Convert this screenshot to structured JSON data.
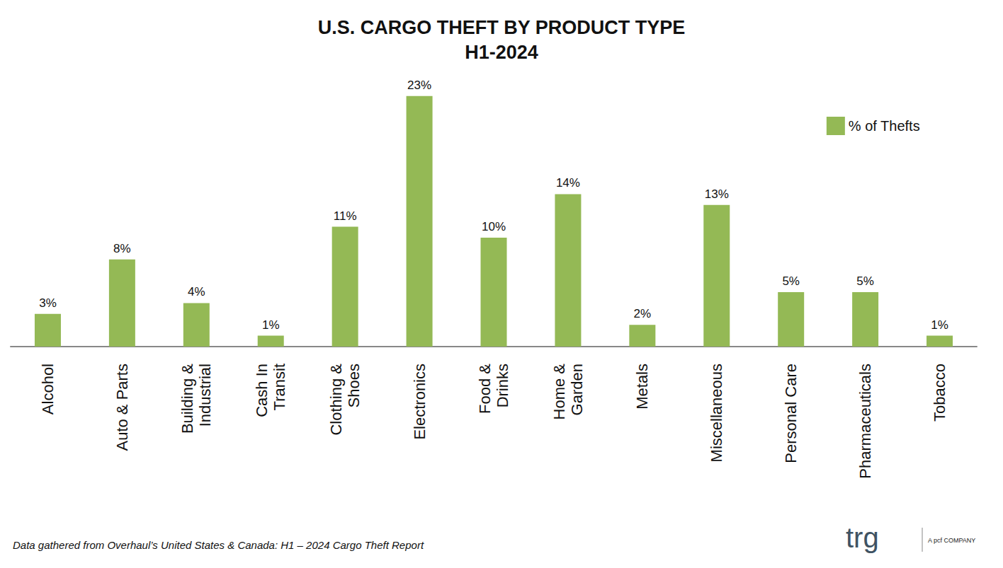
{
  "chart_data": {
    "type": "bar",
    "title": "U.S. CARGO THEFT BY PRODUCT TYPE",
    "subtitle": "H1-2024",
    "categories": [
      "Alcohol",
      "Auto & Parts",
      "Building &\nIndustrial",
      "Cash In\nTransit",
      "Clothing &\nShoes",
      "Electronics",
      "Food &\nDrinks",
      "Home &\nGarden",
      "Metals",
      "Miscellaneous",
      "Personal Care",
      "Pharmaceuticals",
      "Tobacco"
    ],
    "series": [
      {
        "name": "% of Thefts",
        "color": "#94b955",
        "values": [
          3,
          8,
          4,
          1,
          11,
          23,
          10,
          14,
          2,
          13,
          5,
          5,
          1
        ],
        "value_labels": [
          "3%",
          "8%",
          "4%",
          "1%",
          "11%",
          "23%",
          "10%",
          "14%",
          "2%",
          "13%",
          "5%",
          "5%",
          "1%"
        ]
      }
    ],
    "ylim": [
      0,
      25
    ],
    "yticks": [
      0,
      25
    ],
    "grid": false,
    "tick_labels": "x",
    "data_labels": true,
    "legend": "top-right",
    "annotations": [
      "Data gathered from Overhaul’s United States & Canada: H1 – 2024 Cargo Theft Report",
      "trg",
      "A pcf COMPANY"
    ]
  }
}
